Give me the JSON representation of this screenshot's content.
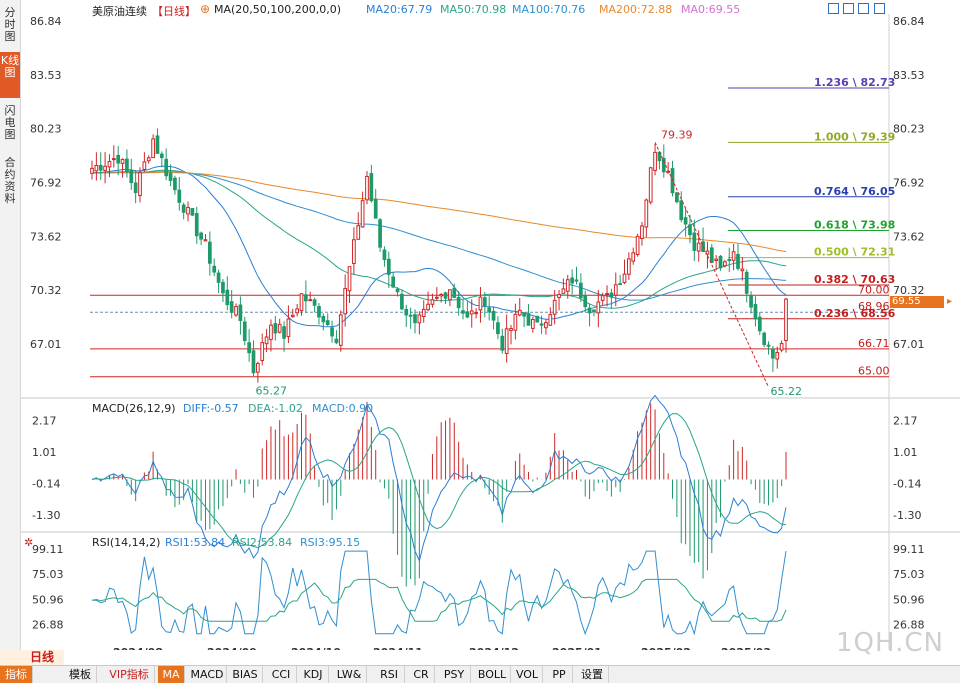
{
  "sidebar": {
    "tabs": [
      {
        "label": "分时图",
        "active": false
      },
      {
        "label": "K线图",
        "active": true
      },
      {
        "label": "闪电图",
        "active": false
      },
      {
        "label": "合约资料",
        "active": false
      }
    ]
  },
  "header": {
    "symbol": "美原油连续",
    "period": "【日线】",
    "ma_params": "MA(20,50,100,200,0,0)",
    "ma_values": [
      {
        "label": "MA20:67.79",
        "color": "#2a7fd4"
      },
      {
        "label": "MA50:70.98",
        "color": "#2aa58a"
      },
      {
        "label": "MA100:70.76",
        "color": "#2f8fd0"
      },
      {
        "label": "MA200:72.88",
        "color": "#e8892b"
      },
      {
        "label": "MA0:69.55",
        "color": "#d46fd4"
      }
    ]
  },
  "price_axis": {
    "ticks": [
      "86.84",
      "83.53",
      "80.23",
      "76.92",
      "73.62",
      "70.32",
      "67.01"
    ],
    "range": [
      63.7,
      86.84
    ]
  },
  "chart_data": {
    "type": "candlestick",
    "annotations": {
      "high": "79.39",
      "lows": [
        "65.27",
        "65.22"
      ]
    },
    "fibonacci": [
      {
        "label": "1.236 \\ 82.73",
        "value": 82.73,
        "color": "#5a3fb0"
      },
      {
        "label": "1.000 \\ 79.39",
        "value": 79.39,
        "color": "#8fa829"
      },
      {
        "label": "0.764 \\ 76.05",
        "value": 76.05,
        "color": "#2a3fae"
      },
      {
        "label": "0.618 \\ 73.98",
        "value": 73.98,
        "color": "#1fa22d"
      },
      {
        "label": "0.500 \\ 72.31",
        "value": 72.31,
        "color": "#9fbd2a"
      },
      {
        "label": "0.382 \\ 70.63",
        "value": 70.63,
        "color": "#c21e1e"
      },
      {
        "label": "0.236 \\ 68.56",
        "value": 68.56,
        "color": "#c21e1e"
      }
    ],
    "horizontal_levels": [
      {
        "label": "70.00",
        "value": 70.0
      },
      {
        "label": "68.96",
        "value": 68.96
      },
      {
        "label": "66.71",
        "value": 66.71
      },
      {
        "label": "65.00",
        "value": 65.0
      }
    ],
    "last_price": "69.55",
    "ma_latest": {
      "MA20": 67.79,
      "MA50": 70.98,
      "MA100": 70.76,
      "MA200": 72.88
    },
    "x_labels": [
      "2024/08",
      "2024/09",
      "2024/10",
      "2024/11",
      "2024/12",
      "2025/01",
      "2025/02",
      "2025/03"
    ]
  },
  "macd": {
    "title": "MACD(26,12,9)",
    "diff": "DIFF:-0.57",
    "dea": "DEA:-1.02",
    "macd": "MACD:0.90",
    "ticks": [
      "2.17",
      "1.01",
      "-0.14",
      "-1.30"
    ],
    "range": [
      -1.85,
      2.4
    ]
  },
  "rsi": {
    "title": "RSI(14,14,2)",
    "rsi1": "RSI1:53.84",
    "rsi2": "RSI2:53.84",
    "rsi3": "RSI3:95.15",
    "ticks": [
      "99.11",
      "75.03",
      "50.96",
      "26.88"
    ],
    "range": [
      12,
      100
    ]
  },
  "bottom": {
    "period_label": "日线",
    "tabs": [
      "指标",
      "模板",
      "VIP指标",
      "MA",
      "MACD",
      "BIAS",
      "CCI",
      "KDJ",
      "LW&",
      "RSI",
      "CR",
      "PSY",
      "BOLL",
      "VOL",
      "PP",
      "设置"
    ]
  },
  "watermark": "1QH.CN",
  "colors": {
    "up": "#d02626",
    "down": "#1f9a6a",
    "accent": "#e8731f"
  }
}
